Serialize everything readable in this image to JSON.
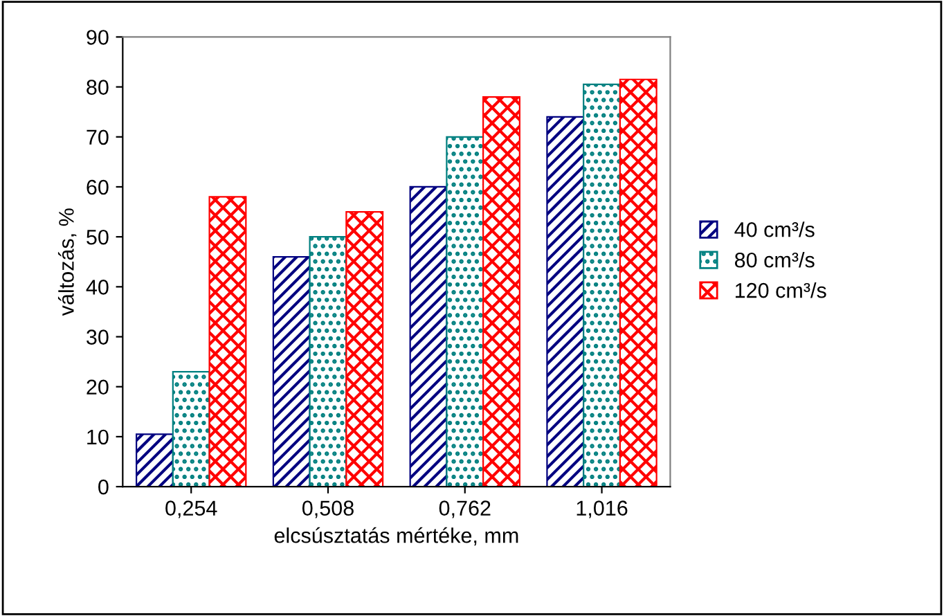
{
  "chart_data": {
    "type": "bar",
    "xlabel": "elcsúsztatás mértéke, mm",
    "ylabel": "változás, %",
    "categories": [
      "0,254",
      "0,508",
      "0,762",
      "1,016"
    ],
    "series": [
      {
        "name": "40 cm³/s",
        "color": "#000080",
        "values": [
          10.5,
          46,
          60,
          74
        ]
      },
      {
        "name": "80 cm³/s",
        "color": "#008080",
        "values": [
          23,
          50,
          70,
          80.5
        ]
      },
      {
        "name": "120 cm³/s",
        "color": "#ff0000",
        "values": [
          58,
          55,
          78,
          81.5
        ]
      }
    ],
    "ylim": [
      0,
      90
    ],
    "yticks": [
      0,
      10,
      20,
      30,
      40,
      50,
      60,
      70,
      80,
      90
    ],
    "grid": false,
    "legend": "right"
  }
}
